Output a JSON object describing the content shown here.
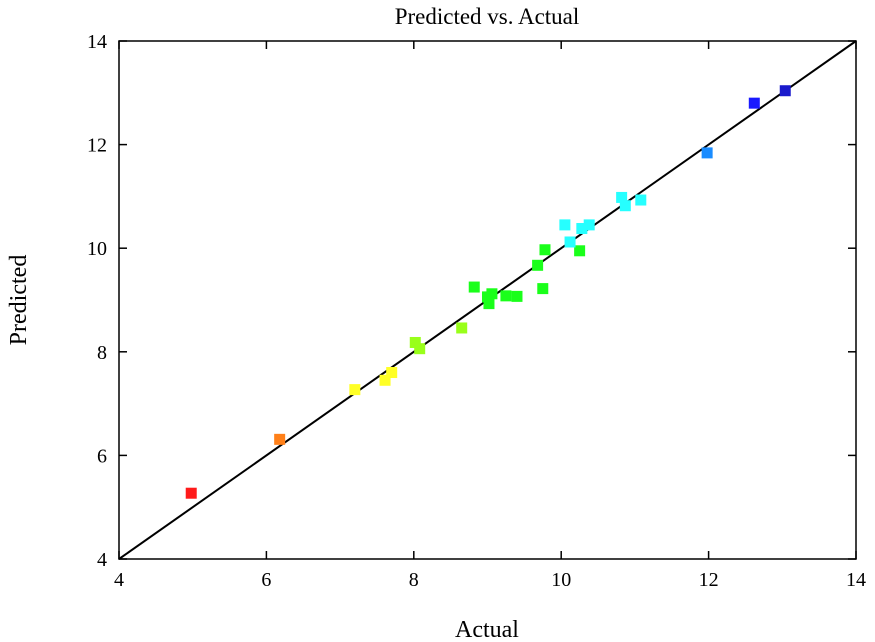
{
  "chart_data": {
    "type": "scatter",
    "title": "Predicted vs. Actual",
    "xlabel": "Actual",
    "ylabel": "Predicted",
    "xlim": [
      4,
      14
    ],
    "ylim": [
      4,
      14
    ],
    "xticks": [
      "4",
      "6",
      "8",
      "10",
      "12",
      "14"
    ],
    "yticks": [
      "4",
      "6",
      "8",
      "10",
      "12",
      "14"
    ],
    "grid": false,
    "reference_line": {
      "from": [
        4,
        4
      ],
      "to": [
        14,
        14
      ],
      "color": "#000000"
    },
    "points": [
      {
        "x": 4.98,
        "y": 5.27,
        "color": "#ff1a1a"
      },
      {
        "x": 6.18,
        "y": 6.31,
        "color": "#ff8019"
      },
      {
        "x": 7.2,
        "y": 7.27,
        "color": "#ffff26"
      },
      {
        "x": 7.61,
        "y": 7.45,
        "color": "#ffff26"
      },
      {
        "x": 7.7,
        "y": 7.6,
        "color": "#ffff26"
      },
      {
        "x": 8.02,
        "y": 8.18,
        "color": "#99ff1a"
      },
      {
        "x": 8.08,
        "y": 8.06,
        "color": "#99ff1a"
      },
      {
        "x": 8.65,
        "y": 8.46,
        "color": "#99ff1a"
      },
      {
        "x": 8.82,
        "y": 9.25,
        "color": "#1aff1a"
      },
      {
        "x": 9.0,
        "y": 9.06,
        "color": "#1aff1a"
      },
      {
        "x": 9.02,
        "y": 8.93,
        "color": "#1aff1a"
      },
      {
        "x": 9.06,
        "y": 9.12,
        "color": "#1aff1a"
      },
      {
        "x": 9.25,
        "y": 9.08,
        "color": "#1aff1a"
      },
      {
        "x": 9.4,
        "y": 9.07,
        "color": "#1aff1a"
      },
      {
        "x": 9.68,
        "y": 9.67,
        "color": "#1aff1a"
      },
      {
        "x": 9.75,
        "y": 9.22,
        "color": "#1aff1a"
      },
      {
        "x": 9.78,
        "y": 9.97,
        "color": "#1aff1a"
      },
      {
        "x": 10.25,
        "y": 9.95,
        "color": "#1aff1a"
      },
      {
        "x": 10.05,
        "y": 10.45,
        "color": "#26ffff"
      },
      {
        "x": 10.12,
        "y": 10.12,
        "color": "#26ffff"
      },
      {
        "x": 10.28,
        "y": 10.38,
        "color": "#26ffff"
      },
      {
        "x": 10.38,
        "y": 10.45,
        "color": "#26ffff"
      },
      {
        "x": 10.82,
        "y": 10.98,
        "color": "#26ffff"
      },
      {
        "x": 10.87,
        "y": 10.82,
        "color": "#26ffff"
      },
      {
        "x": 11.08,
        "y": 10.93,
        "color": "#26ffff"
      },
      {
        "x": 11.98,
        "y": 11.84,
        "color": "#1a8cff"
      },
      {
        "x": 12.62,
        "y": 12.8,
        "color": "#1a1aff"
      },
      {
        "x": 13.04,
        "y": 13.04,
        "color": "#1a1acc"
      }
    ]
  }
}
